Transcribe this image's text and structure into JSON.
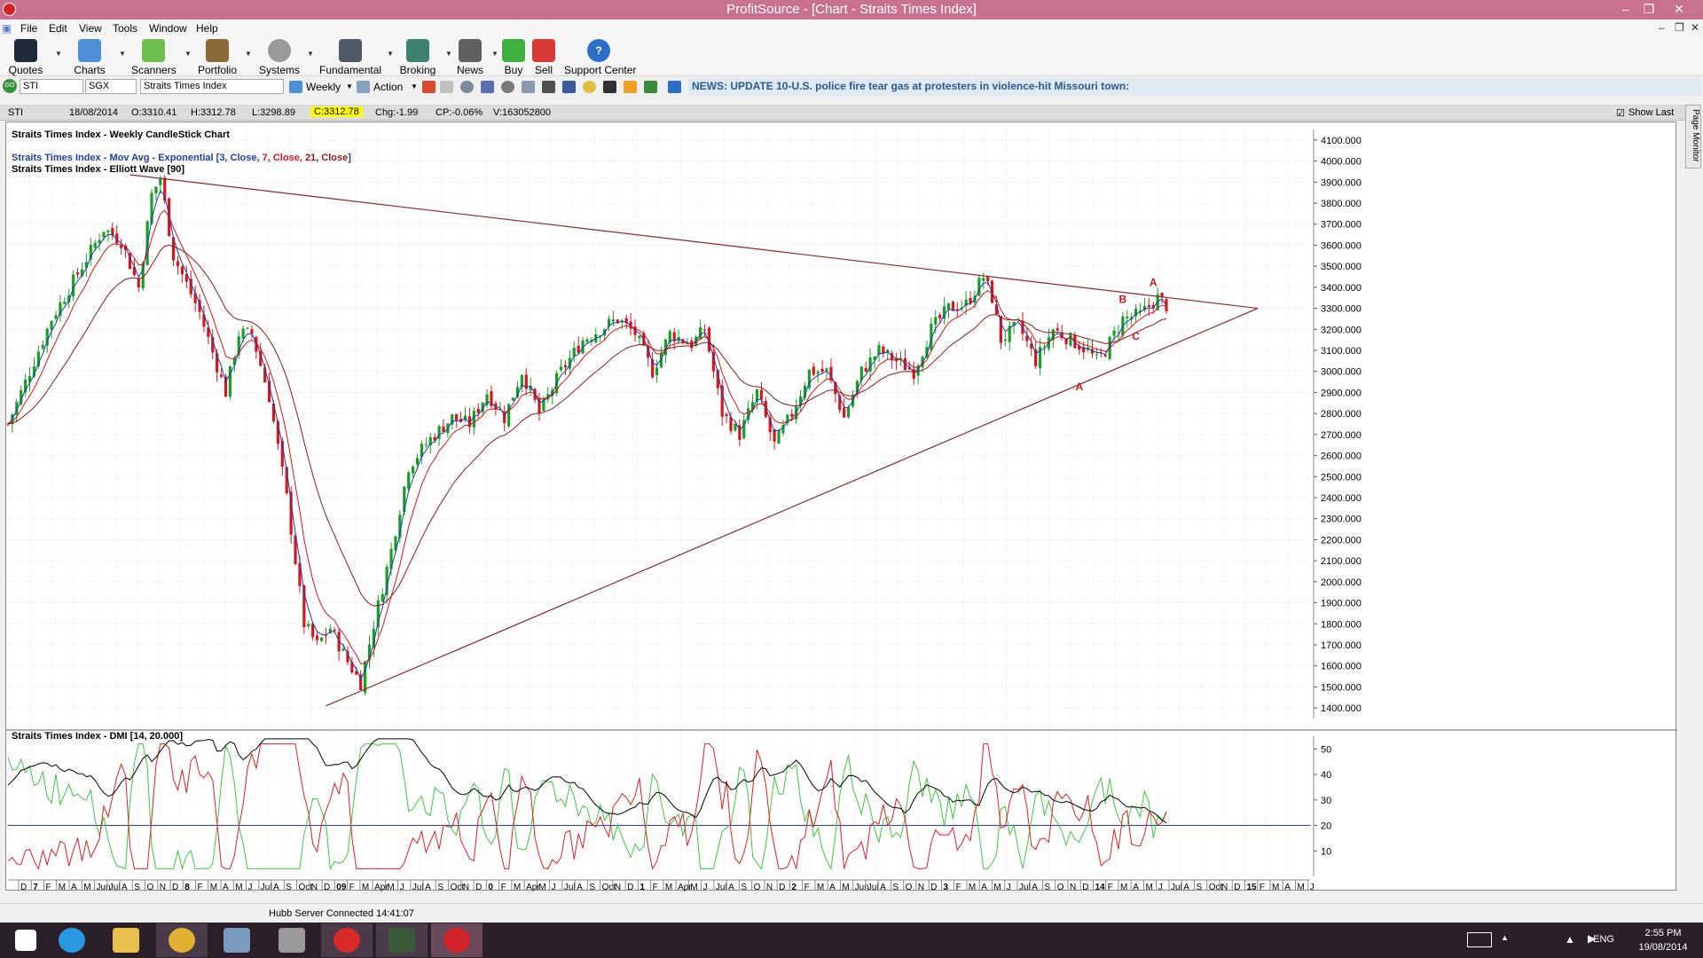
{
  "window": {
    "title": "ProfitSource - [Chart - Straits Times Index]"
  },
  "menu": [
    "File",
    "Edit",
    "View",
    "Tools",
    "Window",
    "Help"
  ],
  "toolbar": {
    "items": [
      "Quotes",
      "Charts",
      "Scanners",
      "Portfolio",
      "Systems",
      "Fundamental",
      "Broking",
      "News",
      "Buy",
      "Sell",
      "Support Center"
    ]
  },
  "symbolbar": {
    "symbol": "STI",
    "exchange": "SGX",
    "name": "Straits Times Index",
    "period": "Weekly",
    "action": "Action",
    "go": "GO"
  },
  "news": {
    "text": "NEWS: UPDATE 10-U.S. police fire tear gas at protesters in violence-hit Missouri town:"
  },
  "info": {
    "code": "STI",
    "date": "18/08/2014",
    "open": "O:3310.41",
    "high": "H:3312.78",
    "low": "L:3298.89",
    "close": "C:3312.78",
    "chg": "Chg:-1.99",
    "cp": "CP:-0.06%",
    "vol": "V:163052800",
    "show_last": "Show Last"
  },
  "page_monitor": "Page Monitor",
  "legend": {
    "title": "Straits Times Index - Weekly CandleStick Chart",
    "ma_prefix": "Straits Times Index - Mov Avg - Exponential [",
    "ma_a": "3, Close,",
    "ma_b": "7, Close,",
    "ma_c": "21, Close",
    "ma_suffix": "]",
    "elliott": "Straits Times Index - Elliott Wave [90]",
    "dmi": "Straits Times Index - DMI [14, 20.000]"
  },
  "status": {
    "text": "Hubb Server Connected 14:41:07"
  },
  "tray": {
    "lang": "ENG",
    "time": "2:55 PM",
    "date": "19/08/2014"
  },
  "colors": {
    "titlebar": "#c9728f",
    "up": "#1a9e2a",
    "down": "#d4161e",
    "trendline": "#8b2a2a",
    "dmi_plus": "#3fc63f",
    "dmi_minus": "#e02020",
    "adx": "#000000",
    "threshold": "#1f3fbf"
  },
  "chart_data": {
    "type": "candlestick",
    "title": "Straits Times Index - Weekly CandleStick Chart",
    "ylim": [
      1350,
      4150
    ],
    "yticks": [
      "4100.000",
      "4000.000",
      "3900.000",
      "3800.000",
      "3700.000",
      "3600.000",
      "3500.000",
      "3400.000",
      "3300.000",
      "3200.000",
      "3100.000",
      "3000.000",
      "2900.000",
      "2800.000",
      "2700.000",
      "2600.000",
      "2500.000",
      "2400.000",
      "2300.000",
      "2200.000",
      "2100.000",
      "2000.000",
      "1900.000",
      "1800.000",
      "1700.000",
      "1600.000",
      "1500.000",
      "1400.000"
    ],
    "ytick_values": [
      4100,
      4000,
      3900,
      3800,
      3700,
      3600,
      3500,
      3400,
      3300,
      3200,
      3100,
      3000,
      2900,
      2800,
      2700,
      2600,
      2500,
      2400,
      2300,
      2200,
      2100,
      2000,
      1900,
      1800,
      1700,
      1600,
      1500,
      1400
    ],
    "xticks": [
      "D",
      "7",
      "F",
      "M",
      "A",
      "M",
      "Jun",
      "Jul",
      "A",
      "S",
      "O",
      "N",
      "D",
      "8",
      "F",
      "M",
      "A",
      "M",
      "J",
      "Jul",
      "A",
      "S",
      "Oct",
      "N",
      "D",
      "09",
      "F",
      "M",
      "Apr",
      "M",
      "J",
      "Jul",
      "A",
      "S",
      "Oct",
      "N",
      "D",
      "0",
      "F",
      "M",
      "Apr",
      "M",
      "J",
      "Jul",
      "A",
      "S",
      "Oct",
      "N",
      "D",
      "1",
      "F",
      "M",
      "Apr",
      "M",
      "J",
      "Jul",
      "A",
      "S",
      "O",
      "N",
      "D",
      "2",
      "F",
      "M",
      "A",
      "M",
      "Jun",
      "Jul",
      "A",
      "S",
      "O",
      "N",
      "D",
      "3",
      "F",
      "M",
      "A",
      "M",
      "J",
      "Jul",
      "A",
      "S",
      "O",
      "N",
      "D",
      "14",
      "F",
      "M",
      "A",
      "M",
      "J",
      "Jul",
      "A",
      "S",
      "Oct",
      "N",
      "D",
      "15",
      "F",
      "M",
      "A",
      "M",
      "J"
    ],
    "index_path": [
      [
        0,
        2750
      ],
      [
        10,
        3250
      ],
      [
        22,
        3680
      ],
      [
        26,
        3620
      ],
      [
        30,
        3400
      ],
      [
        33,
        3840
      ],
      [
        35,
        3920
      ],
      [
        38,
        3550
      ],
      [
        44,
        3280
      ],
      [
        50,
        2900
      ],
      [
        53,
        3180
      ],
      [
        56,
        3180
      ],
      [
        60,
        2880
      ],
      [
        64,
        2400
      ],
      [
        68,
        1800
      ],
      [
        71,
        1700
      ],
      [
        74,
        1780
      ],
      [
        78,
        1620
      ],
      [
        81,
        1520
      ],
      [
        84,
        1800
      ],
      [
        88,
        2150
      ],
      [
        92,
        2550
      ],
      [
        97,
        2680
      ],
      [
        102,
        2780
      ],
      [
        106,
        2750
      ],
      [
        110,
        2900
      ],
      [
        114,
        2780
      ],
      [
        118,
        3000
      ],
      [
        122,
        2800
      ],
      [
        127,
        3000
      ],
      [
        132,
        3150
      ],
      [
        136,
        3200
      ],
      [
        140,
        3250
      ],
      [
        144,
        3180
      ],
      [
        148,
        3000
      ],
      [
        152,
        3180
      ],
      [
        157,
        3130
      ],
      [
        160,
        3200
      ],
      [
        164,
        2800
      ],
      [
        168,
        2700
      ],
      [
        172,
        2900
      ],
      [
        176,
        2650
      ],
      [
        180,
        2800
      ],
      [
        184,
        3000
      ],
      [
        188,
        3000
      ],
      [
        192,
        2780
      ],
      [
        196,
        3000
      ],
      [
        200,
        3100
      ],
      [
        204,
        3050
      ],
      [
        208,
        3000
      ],
      [
        212,
        3200
      ],
      [
        216,
        3300
      ],
      [
        220,
        3320
      ],
      [
        224,
        3450
      ],
      [
        226,
        3350
      ],
      [
        228,
        3150
      ],
      [
        232,
        3220
      ],
      [
        236,
        3050
      ],
      [
        240,
        3200
      ],
      [
        244,
        3150
      ],
      [
        248,
        3100
      ],
      [
        250,
        3050
      ],
      [
        252,
        3100
      ],
      [
        256,
        3250
      ],
      [
        260,
        3270
      ],
      [
        264,
        3350
      ],
      [
        266,
        3313
      ]
    ],
    "annotations": [
      {
        "text": "A",
        "x": 263,
        "y": 3405
      },
      {
        "text": "B",
        "x": 256,
        "y": 3325
      },
      {
        "text": "C",
        "x": 259,
        "y": 3150
      },
      {
        "text": "A",
        "x": 246,
        "y": 2910
      }
    ],
    "trendlines": [
      {
        "from": [
          28,
          3935
        ],
        "to": [
          287,
          3300
        ]
      },
      {
        "from": [
          73,
          1410
        ],
        "to": [
          287,
          3300
        ]
      }
    ],
    "dmi_yticks": [
      "50",
      "40",
      "30",
      "20",
      "10"
    ],
    "dmi_ytick_values": [
      50,
      40,
      30,
      20,
      10
    ],
    "dmi_ylim": [
      0,
      55
    ],
    "dmi_threshold": 20
  }
}
